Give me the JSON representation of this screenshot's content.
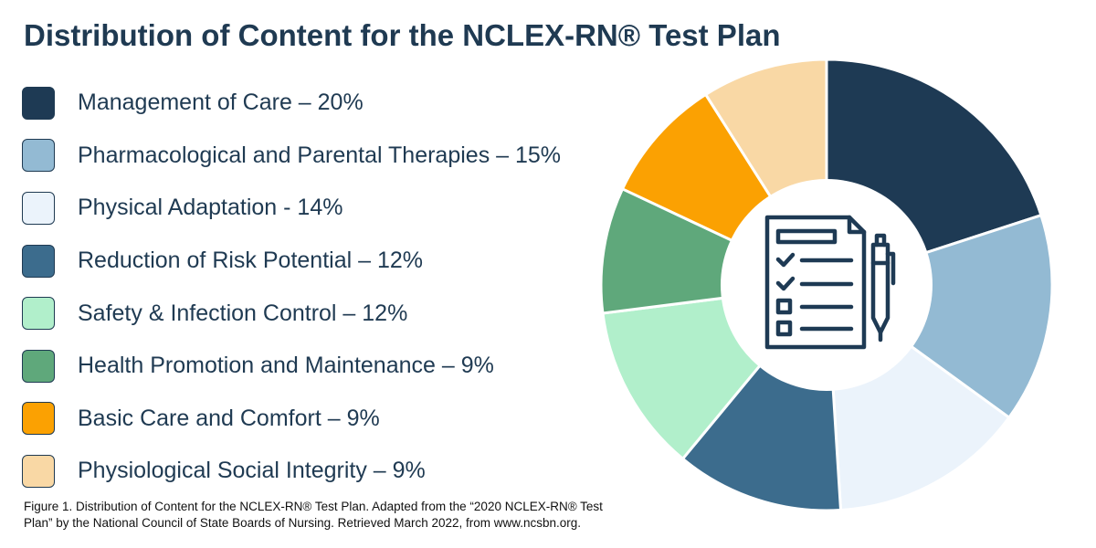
{
  "chart_data": {
    "type": "pie",
    "title": "Distribution of Content for the NCLEX-RN® Test Plan",
    "categories": [
      "Management of Care",
      "Pharmacological and Parental Therapies",
      "Physical Adaptation",
      "Reduction of Risk Potential",
      "Safety & Infection Control",
      "Health Promotion and Maintenance",
      "Basic Care and Comfort",
      "Physiological Social Integrity"
    ],
    "values": [
      20,
      15,
      14,
      12,
      12,
      9,
      9,
      9
    ],
    "labels": [
      "Management of Care – 20%",
      "Pharmacological and Parental Therapies – 15%",
      "Physical Adaptation - 14%",
      "Reduction of Risk Potential – 12%",
      "Safety & Infection Control – 12%",
      "Health Promotion and Maintenance – 9%",
      "Basic Care and Comfort – 9%",
      "Physiological Social Integrity – 9%"
    ],
    "colors": [
      "#1e3a54",
      "#93bad3",
      "#ebf3fb",
      "#3c6c8d",
      "#b1efcb",
      "#5fa87b",
      "#fba102",
      "#f9d8a5"
    ],
    "legend": "left",
    "style": "donut",
    "center_icon": "checklist-clipboard-with-pen-icon"
  },
  "caption": "Figure 1. Distribution of Content for the NCLEX-RN® Test Plan. Adapted from the “2020 NCLEX-RN® Test Plan” by the National Council of State Boards of Nursing. Retrieved March 2022, from www.ncsbn.org."
}
